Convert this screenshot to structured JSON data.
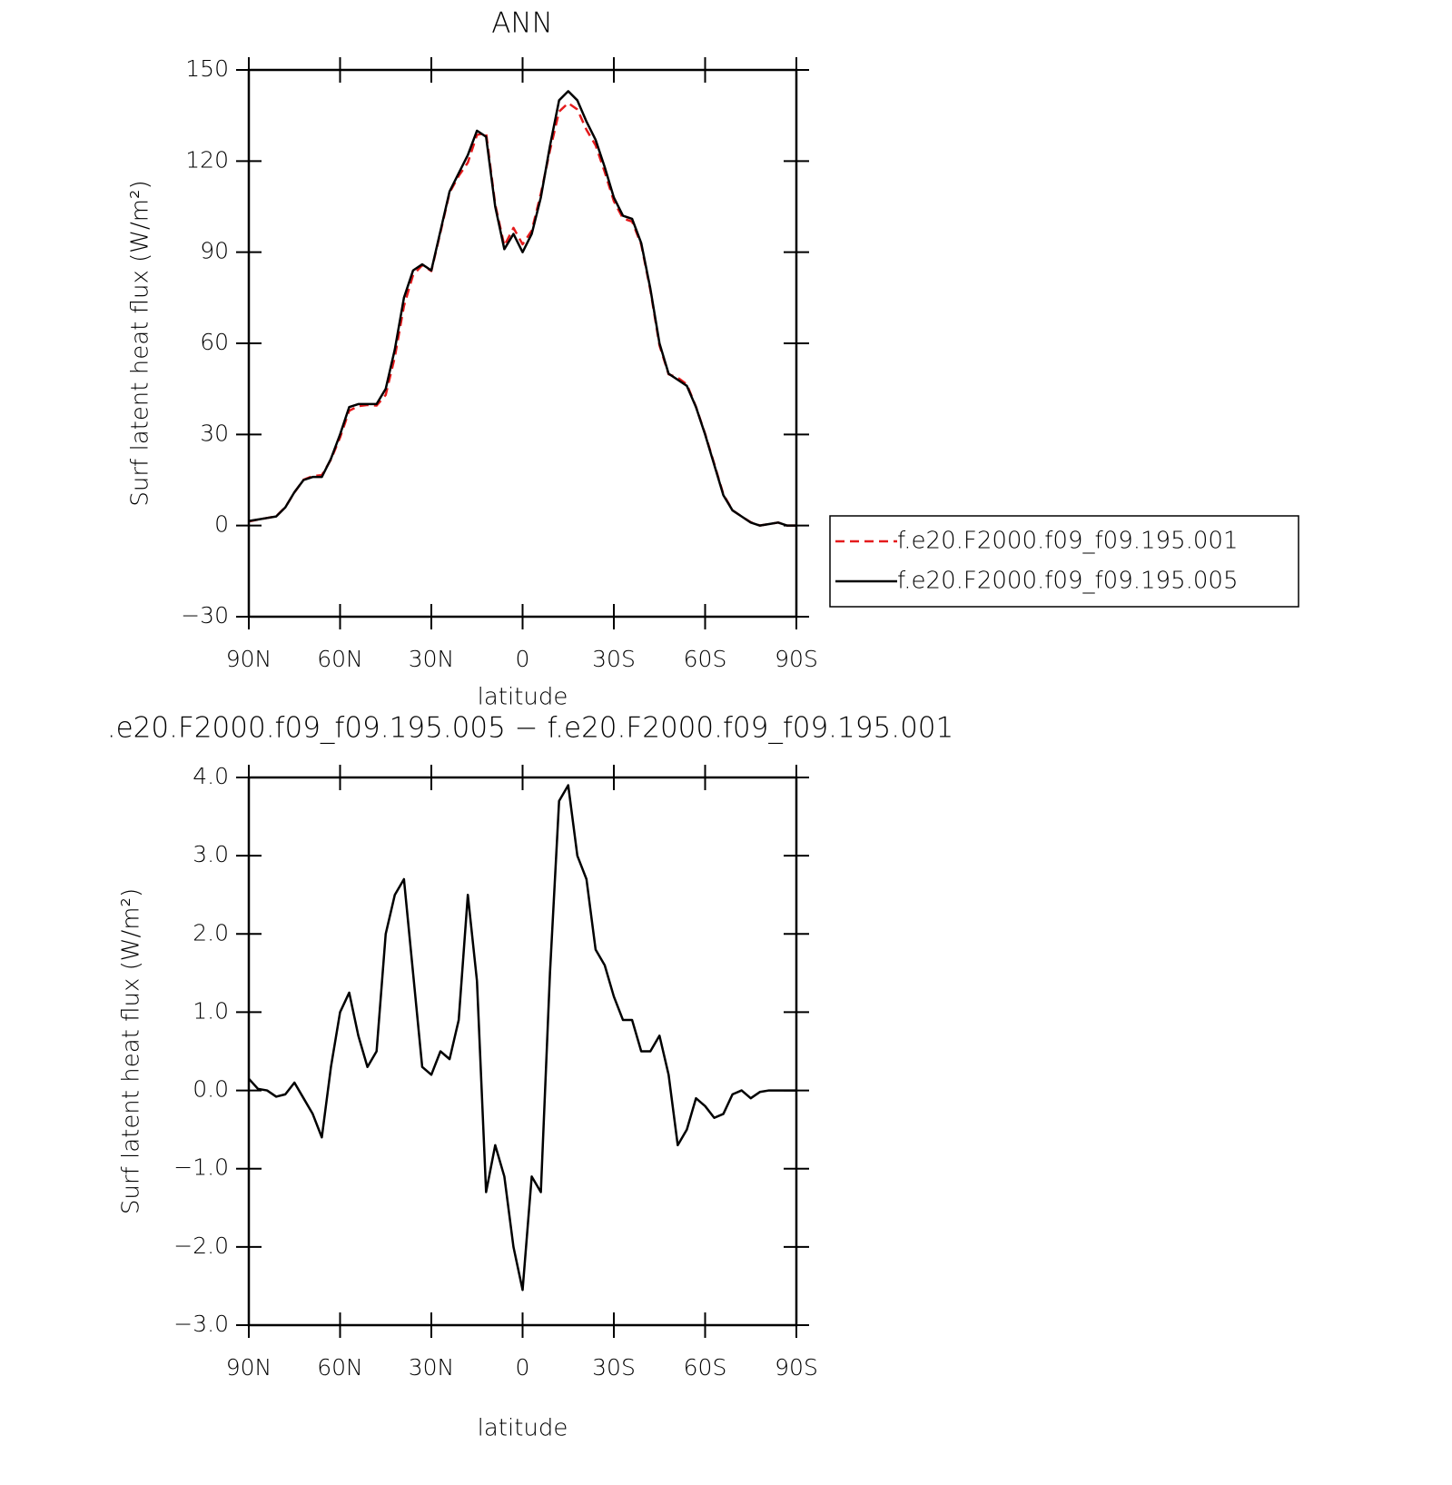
{
  "chart_data": [
    {
      "type": "line",
      "title": "ANN",
      "xlabel": "latitude",
      "ylabel": "Surf latent heat flux (W/m²)",
      "x": [
        90,
        87,
        84,
        81,
        78,
        75,
        72,
        69,
        66,
        63,
        60,
        57,
        54,
        51,
        48,
        45,
        42,
        39,
        36,
        33,
        30,
        27,
        24,
        21,
        18,
        15,
        12,
        9,
        6,
        3,
        0,
        -3,
        -6,
        -9,
        -12,
        -15,
        -18,
        -21,
        -24,
        -27,
        -30,
        -33,
        -36,
        -39,
        -42,
        -45,
        -48,
        -51,
        -54,
        -57,
        -60,
        -63,
        -66,
        -69,
        -72,
        -75,
        -78,
        -81,
        -84,
        -87,
        -90
      ],
      "series": [
        {
          "name": "f.e20.F2000.f09_f09.195.001",
          "color": "#e41a1c",
          "dash": true,
          "values": [
            1.35,
            1.98,
            2.5,
            3.08,
            6.05,
            10.9,
            15.1,
            16.3,
            16.6,
            21.7,
            29,
            37.8,
            39.3,
            39.7,
            39.5,
            43,
            55.5,
            72.3,
            82.5,
            85.7,
            83.8,
            96.5,
            109.6,
            115.1,
            119.5,
            128.6,
            129.3,
            105.7,
            92.1,
            98,
            92.6,
            97.1,
            109.3,
            123.5,
            136.3,
            139.1,
            137,
            130.3,
            125.2,
            116.4,
            106.8,
            101.1,
            100.1,
            92.5,
            77.5,
            59.3,
            49.8,
            48.7,
            46.5,
            39.1,
            30.2,
            20.35,
            10.3,
            5.05,
            3,
            1.1,
            0.02,
            0.5,
            1,
            0,
            0
          ]
        },
        {
          "name": "f.e20.F2000.f09_f09.195.005",
          "color": "#000000",
          "dash": false,
          "values": [
            1.5,
            2,
            2.5,
            3,
            6,
            11,
            15,
            16,
            16,
            22,
            30,
            39,
            40,
            40,
            40,
            45,
            58,
            75,
            84,
            86,
            84,
            97,
            110,
            116,
            122,
            130,
            128,
            105,
            91,
            96,
            90,
            96,
            108,
            125,
            140,
            143,
            140,
            133,
            127,
            118,
            108,
            102,
            101,
            93,
            78,
            60,
            50,
            48,
            46,
            39,
            30,
            20,
            10,
            5,
            3,
            1,
            0,
            0.5,
            1,
            0,
            0
          ]
        }
      ],
      "xlim": [
        90,
        -90
      ],
      "xticks": [
        {
          "value": 90,
          "label": "90N"
        },
        {
          "value": 60,
          "label": "60N"
        },
        {
          "value": 30,
          "label": "30N"
        },
        0,
        {
          "value": -30,
          "label": "30S"
        },
        {
          "value": -60,
          "label": "60S"
        },
        {
          "value": -90,
          "label": "90S"
        }
      ],
      "ylim": [
        -30,
        150
      ],
      "yticks": [
        {
          "value": -30,
          "label": "−30"
        },
        0,
        30,
        60,
        90,
        120,
        150
      ],
      "legend": "right"
    },
    {
      "type": "line",
      "title": ".e20.F2000.f09_f09.195.005 − f.e20.F2000.f09_f09.195.001",
      "xlabel": "latitude",
      "ylabel": "Surf latent heat flux (W/m²)",
      "x": [
        90,
        87,
        84,
        81,
        78,
        75,
        72,
        69,
        66,
        63,
        60,
        57,
        54,
        51,
        48,
        45,
        42,
        39,
        36,
        33,
        30,
        27,
        24,
        21,
        18,
        15,
        12,
        9,
        6,
        3,
        0,
        -3,
        -6,
        -9,
        -12,
        -15,
        -18,
        -21,
        -24,
        -27,
        -30,
        -33,
        -36,
        -39,
        -42,
        -45,
        -48,
        -51,
        -54,
        -57,
        -60,
        -63,
        -66,
        -69,
        -72,
        -75,
        -78,
        -81,
        -84,
        -87,
        -90
      ],
      "series": [
        {
          "color": "#000000",
          "dash": false,
          "values": [
            0.15,
            0.02,
            0,
            -0.08,
            -0.05,
            0.1,
            -0.1,
            -0.3,
            -0.6,
            0.3,
            1.0,
            1.25,
            0.7,
            0.3,
            0.5,
            2.0,
            2.5,
            2.7,
            1.5,
            0.3,
            0.2,
            0.5,
            0.4,
            0.9,
            2.5,
            1.4,
            -1.3,
            -0.7,
            -1.1,
            -2.0,
            -2.55,
            -1.1,
            -1.3,
            1.5,
            3.7,
            3.9,
            3.0,
            2.7,
            1.8,
            1.6,
            1.2,
            0.9,
            0.9,
            0.5,
            0.5,
            0.7,
            0.2,
            -0.7,
            -0.5,
            -0.1,
            -0.2,
            -0.35,
            -0.3,
            -0.05,
            0,
            -0.1,
            -0.02,
            0,
            0,
            0,
            0
          ]
        }
      ],
      "xlim": [
        90,
        -90
      ],
      "xticks": [
        {
          "value": 90,
          "label": "90N"
        },
        {
          "value": 60,
          "label": "60N"
        },
        {
          "value": 30,
          "label": "30N"
        },
        0,
        {
          "value": -30,
          "label": "30S"
        },
        {
          "value": -60,
          "label": "60S"
        },
        {
          "value": -90,
          "label": "90S"
        }
      ],
      "ylim": [
        -3,
        4
      ],
      "yticks": [
        {
          "value": -3,
          "label": "−3.0"
        },
        {
          "value": -2,
          "label": "−2.0"
        },
        {
          "value": -1,
          "label": "−1.0"
        },
        {
          "value": 0,
          "label": "0.0"
        },
        {
          "value": 1,
          "label": "1.0"
        },
        {
          "value": 2,
          "label": "2.0"
        },
        {
          "value": 3,
          "label": "3.0"
        },
        {
          "value": 4,
          "label": "4.0"
        }
      ]
    }
  ]
}
